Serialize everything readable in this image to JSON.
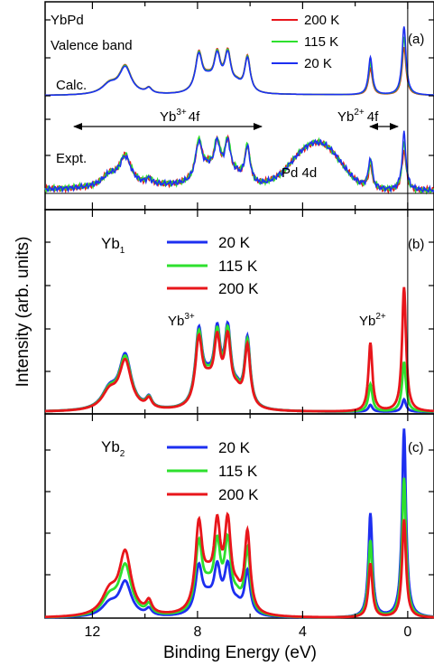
{
  "chart_data": [
    {
      "type": "line",
      "panel_label": "(a)",
      "sample_text": "YbPd",
      "sample_text2": "Valence band",
      "calc_label": "Calc.",
      "expt_label": "Expt.",
      "yb3_label": {
        "base": "Yb",
        "sup": "3+",
        "tail": "4f"
      },
      "yb2_label": {
        "base": "Yb",
        "sup": "2+",
        "tail": "4f"
      },
      "pd_label": "Pd 4d",
      "xlim": [
        13.8,
        -1.0
      ],
      "legend_placement": "top-right",
      "series": [
        {
          "name": "200 K",
          "color": "#e8161b",
          "calc_yb2_scale": 0.7,
          "calc_yb3_scale": 1.02,
          "expt_yb2_scale": 0.72,
          "expt_yb3_scale": 1.0
        },
        {
          "name": "115 K",
          "color": "#2ee02e",
          "calc_yb2_scale": 0.85,
          "calc_yb3_scale": 1.0,
          "expt_yb2_scale": 0.85,
          "expt_yb3_scale": 1.02
        },
        {
          "name": "20 K",
          "color": "#1d2ff0",
          "calc_yb2_scale": 1.0,
          "calc_yb3_scale": 0.97,
          "expt_yb2_scale": 1.0,
          "expt_yb3_scale": 0.97
        }
      ]
    },
    {
      "type": "line",
      "panel_label": "(b)",
      "component": {
        "base": "Yb",
        "sub": "1"
      },
      "yb3_label": {
        "base": "Yb",
        "sup": "3+"
      },
      "yb2_label": {
        "base": "Yb",
        "sup": "2+"
      },
      "xlim": [
        13.8,
        -1.0
      ],
      "legend_placement": "top-left",
      "series": [
        {
          "name": "20 K",
          "color": "#1d2ff0",
          "yb3_scale": 1.0,
          "yb2_scale": 0.1
        },
        {
          "name": "115 K",
          "color": "#2ee02e",
          "yb3_scale": 0.96,
          "yb2_scale": 0.4
        },
        {
          "name": "200 K",
          "color": "#e8161b",
          "yb3_scale": 0.9,
          "yb2_scale": 1.0
        }
      ]
    },
    {
      "type": "line",
      "panel_label": "(c)",
      "component": {
        "base": "Yb",
        "sub": "2"
      },
      "xlim": [
        13.8,
        -1.0
      ],
      "legend_placement": "top-left",
      "series": [
        {
          "name": "20 K",
          "color": "#1d2ff0",
          "yb3_scale": 0.55,
          "yb2_scale": 1.0
        },
        {
          "name": "115 K",
          "color": "#2ee02e",
          "yb3_scale": 0.8,
          "yb2_scale": 0.74
        },
        {
          "name": "200 K",
          "color": "#e8161b",
          "yb3_scale": 1.0,
          "yb2_scale": 0.52
        }
      ]
    }
  ],
  "shared_axis": {
    "xlabel": "Binding Energy (eV)",
    "ylabel": "Intensity (arb. units)",
    "xticks": [
      12,
      8,
      4,
      0
    ]
  }
}
